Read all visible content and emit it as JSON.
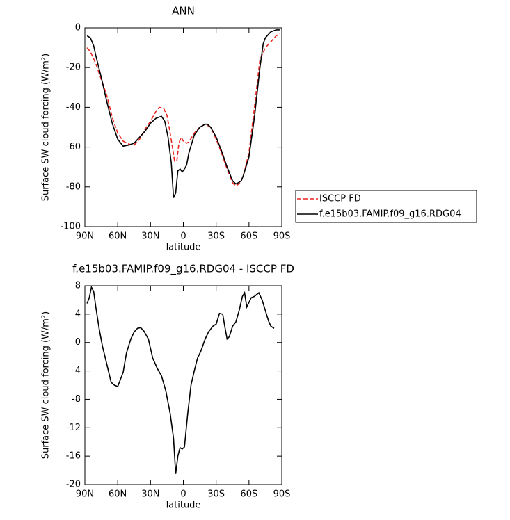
{
  "chart_data": [
    {
      "type": "line",
      "title": "ANN",
      "x_label": "latitude",
      "y_label": "Surface SW cloud forcing (W/m²)",
      "xlim": [
        90,
        -90
      ],
      "xticks": [
        {
          "value": 90,
          "label": "90N"
        },
        {
          "value": 60,
          "label": "60N"
        },
        {
          "value": 30,
          "label": "30N"
        },
        0,
        {
          "value": -30,
          "label": "30S"
        },
        {
          "value": -60,
          "label": "60S"
        },
        {
          "value": -90,
          "label": "90S"
        }
      ],
      "ylim": [
        -100,
        0
      ],
      "yticks": [
        0,
        -20,
        -40,
        -60,
        -80,
        -100
      ],
      "legend": "right",
      "series": [
        {
          "name": "ISCCP FD",
          "color": "#e8241f",
          "dash": true,
          "x": [
            88,
            85,
            80,
            75,
            70,
            65,
            60,
            55,
            50,
            45,
            40,
            35,
            30,
            25,
            22,
            18,
            15,
            13,
            10,
            8,
            6,
            4,
            2,
            0,
            -3,
            -5,
            -10,
            -15,
            -20,
            -25,
            -30,
            -35,
            -40,
            -45,
            -48,
            -52,
            -55,
            -60,
            -65,
            -70,
            -75,
            -80,
            -85,
            -88
          ],
          "values": [
            -10,
            -12,
            -18,
            -26,
            -34,
            -45,
            -53,
            -57,
            -58.5,
            -59,
            -56,
            -51,
            -47,
            -42,
            -40,
            -40.5,
            -44,
            -50,
            -60,
            -67,
            -67,
            -58,
            -55,
            -57,
            -58,
            -57.5,
            -53,
            -50,
            -48.5,
            -50,
            -56,
            -63,
            -71,
            -78,
            -79.5,
            -78,
            -74,
            -63,
            -40,
            -16,
            -10,
            -7,
            -4,
            -3
          ]
        },
        {
          "name": "f.e15b03.FAMIP.f09_g16.RDG04",
          "color": "#000000",
          "dash": false,
          "x": [
            88,
            85,
            82,
            80,
            75,
            70,
            65,
            60,
            55,
            50,
            45,
            40,
            35,
            30,
            25,
            20,
            17,
            14,
            11,
            9,
            7,
            5,
            3,
            1,
            -1,
            -3,
            -5,
            -10,
            -15,
            -20,
            -22,
            -25,
            -30,
            -35,
            -40,
            -45,
            -48,
            -50,
            -53,
            -55,
            -60,
            -65,
            -70,
            -73,
            -75,
            -80,
            -85,
            -88
          ],
          "values": [
            -4,
            -5,
            -9,
            -14,
            -25,
            -37,
            -48,
            -56,
            -59.5,
            -59,
            -58,
            -55,
            -52,
            -48,
            -45.5,
            -44.5,
            -47,
            -55,
            -68,
            -85.5,
            -83,
            -72,
            -71,
            -72.5,
            -71,
            -69,
            -63,
            -54,
            -50,
            -48.5,
            -48.5,
            -50,
            -55,
            -62,
            -70,
            -77,
            -78.5,
            -78,
            -77,
            -74,
            -65,
            -45,
            -20,
            -8,
            -5,
            -2,
            -1,
            -1
          ]
        }
      ]
    },
    {
      "type": "line",
      "title": "f.e15b03.FAMIP.f09_g16.RDG04 - ISCCP FD",
      "x_label": "latitude",
      "y_label": "Surface SW cloud forcing (W/m²)",
      "xlim": [
        90,
        -90
      ],
      "xticks": [
        {
          "value": 90,
          "label": "90N"
        },
        {
          "value": 60,
          "label": "60N"
        },
        {
          "value": 30,
          "label": "30N"
        },
        0,
        {
          "value": -30,
          "label": "30S"
        },
        {
          "value": -60,
          "label": "60S"
        },
        {
          "value": -90,
          "label": "90S"
        }
      ],
      "ylim": [
        -20,
        8
      ],
      "yticks": [
        8,
        4,
        0,
        -4,
        -8,
        -12,
        -16,
        -20
      ],
      "series": [
        {
          "color": "#000000",
          "dash": false,
          "x": [
            88,
            86,
            84,
            82,
            80,
            77,
            74,
            70,
            66,
            63,
            60,
            55,
            52,
            48,
            45,
            42,
            39,
            36,
            32,
            28,
            24,
            20,
            16,
            12,
            9,
            7,
            5,
            3,
            1,
            -1,
            -4,
            -7,
            -10,
            -13,
            -16,
            -20,
            -23,
            -27,
            -30,
            -33,
            -36,
            -38,
            -40,
            -42,
            -45,
            -48,
            -51,
            -54,
            -56,
            -58,
            -62,
            -65,
            -69,
            -72,
            -75,
            -78,
            -80,
            -83
          ],
          "values": [
            5.5,
            6.3,
            7.8,
            7.2,
            5,
            2,
            -0.5,
            -3,
            -5.6,
            -6,
            -6.2,
            -4.2,
            -1.5,
            0.5,
            1.5,
            2,
            2.1,
            1.6,
            0.5,
            -2.2,
            -3.6,
            -4.7,
            -6.8,
            -10,
            -13.5,
            -18.5,
            -16,
            -14.8,
            -15,
            -14.7,
            -10,
            -6,
            -4,
            -2.2,
            -1.2,
            0.5,
            1.5,
            2.3,
            2.6,
            4.1,
            4,
            2.2,
            0.5,
            0.8,
            2.3,
            2.9,
            4.5,
            6.5,
            7,
            5,
            6.3,
            6.5,
            7,
            6,
            4.5,
            3,
            2.3,
            2
          ]
        }
      ]
    }
  ]
}
